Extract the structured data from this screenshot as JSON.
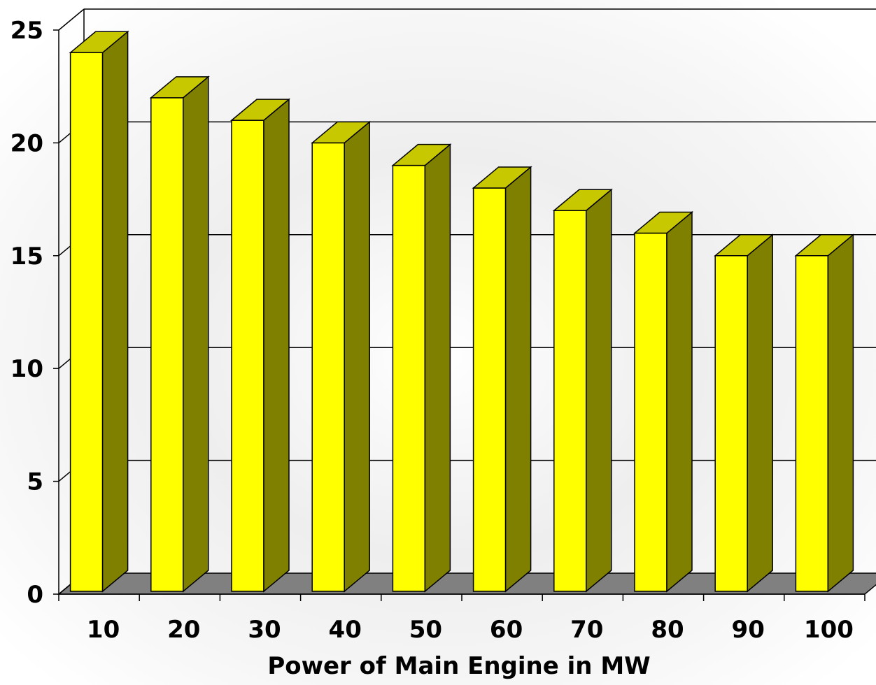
{
  "chart_data": {
    "type": "bar",
    "style": "3d-column",
    "title": "",
    "xlabel": "Power of Main Engine in MW",
    "ylabel": "",
    "categories": [
      "10",
      "20",
      "30",
      "40",
      "50",
      "60",
      "70",
      "80",
      "90",
      "100"
    ],
    "series": [
      {
        "values": [
          24,
          22,
          21,
          20,
          19,
          18,
          17,
          16,
          15,
          15
        ]
      }
    ],
    "ylim": [
      0,
      25
    ],
    "yticks": [
      0,
      5,
      10,
      15,
      20,
      25
    ],
    "grid": true,
    "legend": "none",
    "colors": {
      "bar_front": "#ffff00",
      "bar_top": "#c8c800",
      "bar_side": "#808000",
      "floor": "#808080",
      "gridline": "#000000"
    }
  }
}
